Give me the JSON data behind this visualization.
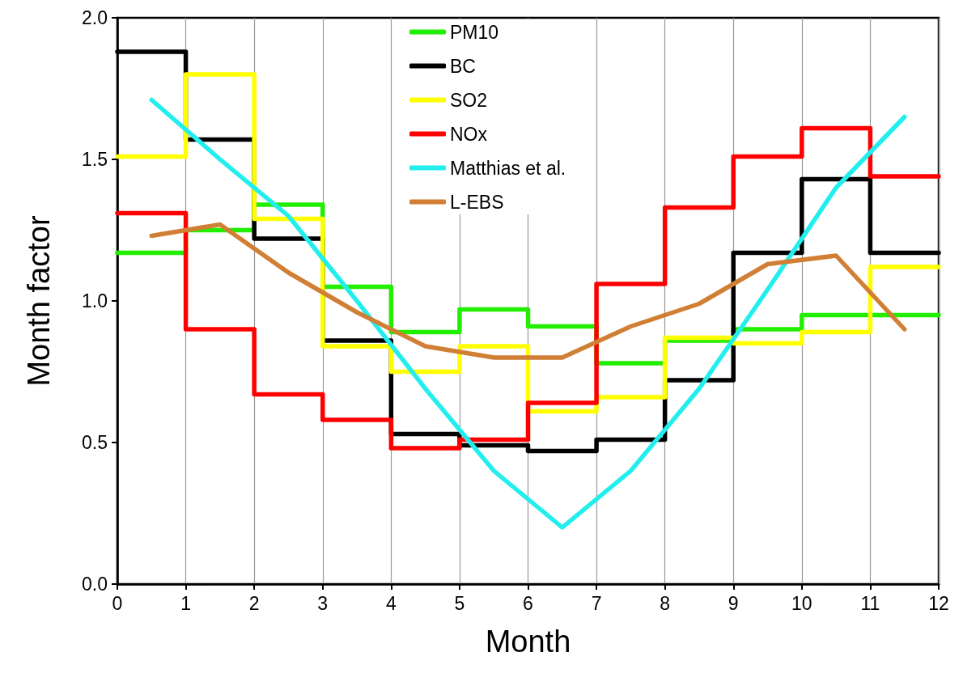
{
  "chart_data": {
    "type": "step",
    "xlabel": "Month",
    "ylabel": "Month factor",
    "xlim": [
      0,
      12
    ],
    "xticks": [
      0,
      1,
      2,
      3,
      4,
      5,
      6,
      7,
      8,
      9,
      10,
      11,
      12
    ],
    "ylim": [
      0,
      2
    ],
    "yticks": [
      {
        "value": 0,
        "label": "0.0"
      },
      {
        "value": 0.5,
        "label": "0.5"
      },
      {
        "value": 1,
        "label": "1.0"
      },
      {
        "value": 1.5,
        "label": "1.5"
      },
      {
        "value": 2,
        "label": "2.0"
      }
    ],
    "grid": "x",
    "legend": "top",
    "marker": "none",
    "line_style": "solid",
    "series": [
      {
        "name": "PM10",
        "color": "#22ee00",
        "x": [
          0,
          1,
          2,
          3,
          4,
          5,
          6,
          7,
          8,
          9,
          10,
          11,
          12
        ],
        "values": [
          1.17,
          1.25,
          1.34,
          1.05,
          0.89,
          0.97,
          0.91,
          0.78,
          0.86,
          0.9,
          0.95,
          0.95,
          0.95
        ]
      },
      {
        "name": "BC",
        "color": "#000000",
        "x": [
          0,
          1,
          2,
          3,
          4,
          5,
          6,
          7,
          8,
          9,
          10,
          11,
          12
        ],
        "values": [
          1.88,
          1.57,
          1.22,
          0.86,
          0.53,
          0.49,
          0.47,
          0.51,
          0.72,
          1.17,
          1.43,
          1.17,
          1.17
        ]
      },
      {
        "name": "SO2",
        "color": "#ffff00",
        "x": [
          0,
          1,
          2,
          3,
          4,
          5,
          6,
          7,
          8,
          9,
          10,
          11,
          12
        ],
        "values": [
          1.51,
          1.8,
          1.29,
          0.84,
          0.75,
          0.84,
          0.61,
          0.66,
          0.87,
          0.85,
          0.89,
          1.12,
          1.12
        ]
      },
      {
        "name": "NOx",
        "color": "#ff0000",
        "x": [
          0,
          1,
          2,
          3,
          4,
          5,
          6,
          7,
          8,
          9,
          10,
          11,
          12
        ],
        "values": [
          1.31,
          0.9,
          0.67,
          0.58,
          0.48,
          0.51,
          0.64,
          1.06,
          1.33,
          1.51,
          1.61,
          1.44,
          1.44
        ]
      },
      {
        "name": "Matthias et al.",
        "type": "line",
        "color": "#22eeee",
        "x": [
          0.5,
          1.5,
          2.5,
          3.5,
          4.5,
          5.5,
          6.5,
          7.5,
          8.5,
          9.5,
          10.5,
          11.5
        ],
        "values": [
          1.71,
          1.5,
          1.3,
          1.0,
          0.69,
          0.4,
          0.2,
          0.4,
          0.69,
          1.04,
          1.4,
          1.65
        ]
      },
      {
        "name": "L-EBS",
        "type": "line",
        "color": "#d07f35",
        "x": [
          0.5,
          1.5,
          2.5,
          3.5,
          4.5,
          5.5,
          6.5,
          7.5,
          8.5,
          9.5,
          10.5,
          11.5
        ],
        "values": [
          1.23,
          1.27,
          1.1,
          0.96,
          0.84,
          0.8,
          0.8,
          0.91,
          0.99,
          1.13,
          1.16,
          0.9
        ]
      }
    ]
  }
}
